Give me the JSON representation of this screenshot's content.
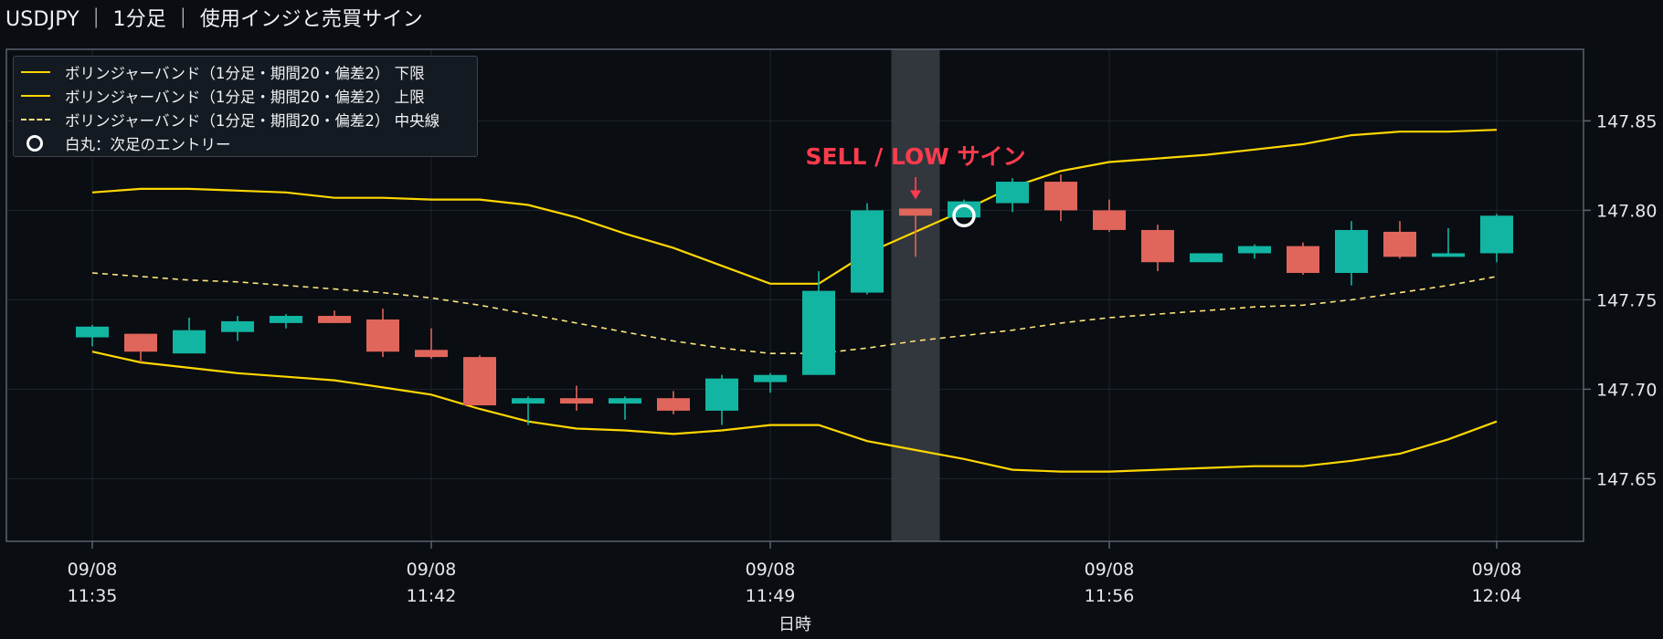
{
  "title": "USDJPY ｜ 1分足 ｜ 使用インジと売買サイン",
  "legend": [
    {
      "label": "ボリンジャーバンド（1分足・期間20・偏差2） 下限",
      "style": "solid",
      "color": "#ffd700"
    },
    {
      "label": "ボリンジャーバンド（1分足・期間20・偏差2） 上限",
      "style": "solid",
      "color": "#ffd700"
    },
    {
      "label": "ボリンジャーバンド（1分足・期間20・偏差2） 中央線",
      "style": "dashed",
      "color": "#ffe57a"
    },
    {
      "label": "白丸：次足のエントリー",
      "style": "circle",
      "color": "#ffffff"
    }
  ],
  "annotation": {
    "text": "SELL / LOW サイン",
    "color": "#ff3b4e"
  },
  "colors": {
    "up": "#12b5a2",
    "down": "#e0655a",
    "band": "#ffd700",
    "mid": "#ffe57a",
    "grid": "#1f252e",
    "axis": "#5a6270",
    "highlight": "#3a3e45"
  },
  "chart_data": {
    "type": "candlestick",
    "title": "USDJPY ｜ 1分足 ｜ 使用インジと売買サイン",
    "xlabel": "日時",
    "ylabel": "",
    "ylim": [
      147.615,
      147.89
    ],
    "yticks": [
      "147.65",
      "147.70",
      "147.75",
      "147.80",
      "147.85"
    ],
    "xticks": [
      {
        "index": 0,
        "date": "09/08",
        "time": "11:35"
      },
      {
        "index": 7,
        "date": "09/08",
        "time": "11:42"
      },
      {
        "index": 14,
        "date": "09/08",
        "time": "11:49"
      },
      {
        "index": 21,
        "date": "09/08",
        "time": "11:56"
      },
      {
        "index": 29,
        "date": "09/08",
        "time": "12:04"
      }
    ],
    "grid": true,
    "legend_position": "top-left",
    "candles": [
      {
        "t": "11:35",
        "o": 147.729,
        "h": 147.736,
        "l": 147.724,
        "c": 147.735
      },
      {
        "t": "11:36",
        "o": 147.731,
        "h": 147.731,
        "l": 147.715,
        "c": 147.721
      },
      {
        "t": "11:37",
        "o": 147.72,
        "h": 147.74,
        "l": 147.72,
        "c": 147.733
      },
      {
        "t": "11:38",
        "o": 147.732,
        "h": 147.741,
        "l": 147.727,
        "c": 147.738
      },
      {
        "t": "11:39",
        "o": 147.737,
        "h": 147.742,
        "l": 147.734,
        "c": 147.741
      },
      {
        "t": "11:40",
        "o": 147.741,
        "h": 147.744,
        "l": 147.737,
        "c": 147.737
      },
      {
        "t": "11:41",
        "o": 147.739,
        "h": 147.745,
        "l": 147.718,
        "c": 147.721
      },
      {
        "t": "11:42",
        "o": 147.722,
        "h": 147.734,
        "l": 147.717,
        "c": 147.718
      },
      {
        "t": "11:43",
        "o": 147.718,
        "h": 147.719,
        "l": 147.691,
        "c": 147.691
      },
      {
        "t": "11:44",
        "o": 147.692,
        "h": 147.696,
        "l": 147.68,
        "c": 147.695
      },
      {
        "t": "11:45",
        "o": 147.695,
        "h": 147.702,
        "l": 147.688,
        "c": 147.692
      },
      {
        "t": "11:46",
        "o": 147.692,
        "h": 147.696,
        "l": 147.683,
        "c": 147.695
      },
      {
        "t": "11:47",
        "o": 147.695,
        "h": 147.699,
        "l": 147.686,
        "c": 147.688
      },
      {
        "t": "11:48",
        "o": 147.688,
        "h": 147.708,
        "l": 147.68,
        "c": 147.706
      },
      {
        "t": "11:49",
        "o": 147.704,
        "h": 147.709,
        "l": 147.698,
        "c": 147.708
      },
      {
        "t": "11:50",
        "o": 147.708,
        "h": 147.766,
        "l": 147.708,
        "c": 147.755
      },
      {
        "t": "11:51",
        "o": 147.754,
        "h": 147.804,
        "l": 147.753,
        "c": 147.8
      },
      {
        "t": "11:52",
        "o": 147.801,
        "h": 147.801,
        "l": 147.774,
        "c": 147.797
      },
      {
        "t": "11:53",
        "o": 147.796,
        "h": 147.806,
        "l": 147.796,
        "c": 147.805
      },
      {
        "t": "11:54",
        "o": 147.804,
        "h": 147.818,
        "l": 147.799,
        "c": 147.816
      },
      {
        "t": "11:55",
        "o": 147.816,
        "h": 147.82,
        "l": 147.794,
        "c": 147.8
      },
      {
        "t": "11:56",
        "o": 147.8,
        "h": 147.806,
        "l": 147.788,
        "c": 147.789
      },
      {
        "t": "11:57",
        "o": 147.789,
        "h": 147.792,
        "l": 147.766,
        "c": 147.771
      },
      {
        "t": "11:58",
        "o": 147.771,
        "h": 147.776,
        "l": 147.771,
        "c": 147.776
      },
      {
        "t": "11:59",
        "o": 147.776,
        "h": 147.781,
        "l": 147.773,
        "c": 147.78
      },
      {
        "t": "12:00",
        "o": 147.78,
        "h": 147.782,
        "l": 147.764,
        "c": 147.765
      },
      {
        "t": "12:01",
        "o": 147.765,
        "h": 147.794,
        "l": 147.758,
        "c": 147.789
      },
      {
        "t": "12:02",
        "o": 147.788,
        "h": 147.794,
        "l": 147.773,
        "c": 147.774
      },
      {
        "t": "12:03",
        "o": 147.774,
        "h": 147.79,
        "l": 147.774,
        "c": 147.776
      },
      {
        "t": "12:04",
        "o": 147.776,
        "h": 147.798,
        "l": 147.771,
        "c": 147.797
      }
    ],
    "series": [
      {
        "name": "ボリンジャーバンド（1分足・期間20・偏差2） 上限",
        "style": "solid",
        "points": [
          [
            0,
            147.81
          ],
          [
            1,
            147.812
          ],
          [
            2,
            147.812
          ],
          [
            3,
            147.811
          ],
          [
            4,
            147.81
          ],
          [
            5,
            147.807
          ],
          [
            6,
            147.807
          ],
          [
            7,
            147.806
          ],
          [
            8,
            147.806
          ],
          [
            9,
            147.803
          ],
          [
            10,
            147.796
          ],
          [
            11,
            147.787
          ],
          [
            12,
            147.779
          ],
          [
            13,
            147.769
          ],
          [
            14,
            147.759
          ],
          [
            15,
            147.759
          ],
          [
            16,
            147.776
          ],
          [
            17,
            147.788
          ],
          [
            18,
            147.8
          ],
          [
            19,
            147.813
          ],
          [
            20,
            147.822
          ],
          [
            21,
            147.827
          ],
          [
            22,
            147.829
          ],
          [
            23,
            147.831
          ],
          [
            24,
            147.834
          ],
          [
            25,
            147.837
          ],
          [
            26,
            147.842
          ],
          [
            27,
            147.844
          ],
          [
            28,
            147.844
          ],
          [
            29,
            147.845
          ]
        ]
      },
      {
        "name": "ボリンジャーバンド（1分足・期間20・偏差2） 中央線",
        "style": "dashed",
        "points": [
          [
            0,
            147.765
          ],
          [
            1,
            147.763
          ],
          [
            2,
            147.761
          ],
          [
            3,
            147.76
          ],
          [
            4,
            147.758
          ],
          [
            5,
            147.756
          ],
          [
            6,
            147.754
          ],
          [
            7,
            147.751
          ],
          [
            8,
            147.747
          ],
          [
            9,
            147.742
          ],
          [
            10,
            147.737
          ],
          [
            11,
            147.732
          ],
          [
            12,
            147.727
          ],
          [
            13,
            147.723
          ],
          [
            14,
            147.72
          ],
          [
            15,
            147.72
          ],
          [
            16,
            147.723
          ],
          [
            17,
            147.727
          ],
          [
            18,
            147.73
          ],
          [
            19,
            147.733
          ],
          [
            20,
            147.737
          ],
          [
            21,
            147.74
          ],
          [
            22,
            147.742
          ],
          [
            23,
            147.744
          ],
          [
            24,
            147.746
          ],
          [
            25,
            147.747
          ],
          [
            26,
            147.75
          ],
          [
            27,
            147.754
          ],
          [
            28,
            147.758
          ],
          [
            29,
            147.763
          ]
        ]
      },
      {
        "name": "ボリンジャーバンド（1分足・期間20・偏差2） 下限",
        "style": "solid",
        "points": [
          [
            0,
            147.721
          ],
          [
            1,
            147.715
          ],
          [
            2,
            147.712
          ],
          [
            3,
            147.709
          ],
          [
            4,
            147.707
          ],
          [
            5,
            147.705
          ],
          [
            6,
            147.701
          ],
          [
            7,
            147.697
          ],
          [
            8,
            147.689
          ],
          [
            9,
            147.682
          ],
          [
            10,
            147.678
          ],
          [
            11,
            147.677
          ],
          [
            12,
            147.675
          ],
          [
            13,
            147.677
          ],
          [
            14,
            147.68
          ],
          [
            15,
            147.68
          ],
          [
            16,
            147.671
          ],
          [
            17,
            147.666
          ],
          [
            18,
            147.661
          ],
          [
            19,
            147.655
          ],
          [
            20,
            147.654
          ],
          [
            21,
            147.654
          ],
          [
            22,
            147.655
          ],
          [
            23,
            147.656
          ],
          [
            24,
            147.657
          ],
          [
            25,
            147.657
          ],
          [
            26,
            147.66
          ],
          [
            27,
            147.664
          ],
          [
            28,
            147.672
          ],
          [
            29,
            147.682
          ]
        ]
      }
    ],
    "highlight_index": 17,
    "signal": {
      "index": 17,
      "text": "SELL / LOW サイン"
    },
    "entry": {
      "index": 18,
      "price": 147.797
    }
  }
}
